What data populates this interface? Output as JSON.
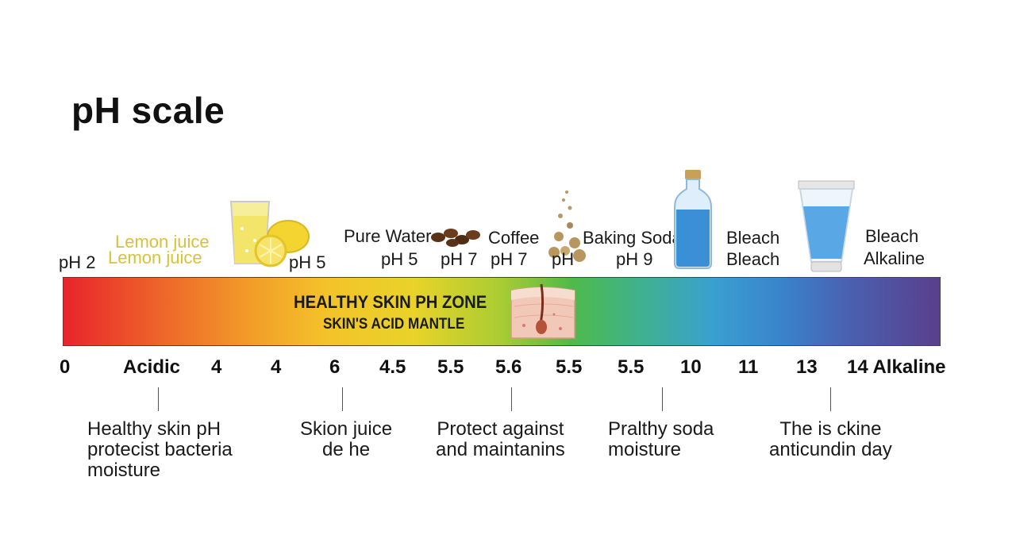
{
  "title": "pH scale",
  "top_labels": {
    "ph2": "pH 2",
    "lemon1": "Lemon juice",
    "lemon2": "Lemon juice",
    "ph5a": "pH 5",
    "pure_water": "Pure Water",
    "ph5b": "pH 5",
    "ph7a": "pH 7",
    "coffee": "Coffee",
    "ph7b": "pH 7",
    "ph": "pH",
    "baking_soda": "Baking Soda",
    "ph9": "pH 9",
    "bleach1a": "Bleach",
    "bleach1b": "Bleach",
    "bleach2": "Bleach",
    "alkaline_top": "Alkaline"
  },
  "bar": {
    "zone_title": "HEALTHY SKIN PH ZONE",
    "zone_subtitle": "SKIN'S ACID MANTLE"
  },
  "ticks": [
    "0",
    "Acidic",
    "4",
    "4",
    "6",
    "4.5",
    "5.5",
    "5.6",
    "5.5",
    "5.5",
    "10",
    "11",
    "13",
    "14 Alkaline"
  ],
  "notes": [
    "Healthy skin pH\nprotecist bacteria\nmoisture",
    "Skion juice\nde he",
    "Protect against\nand maintanins",
    "Pralthy soda\nmoisture",
    "The is ckine\nanticundin day"
  ],
  "colors": {
    "acidic": "#e8242b",
    "neutral": "#4fba4a",
    "alkaline": "#5a3f8c",
    "lemon_text": "#d8c23a"
  },
  "icons": [
    "lemon-juice-glass-icon",
    "lemon-icon",
    "coffee-beans-icon",
    "powder-icon",
    "water-bottle-icon",
    "cream-tube-icon",
    "skin-cross-section-icon"
  ]
}
